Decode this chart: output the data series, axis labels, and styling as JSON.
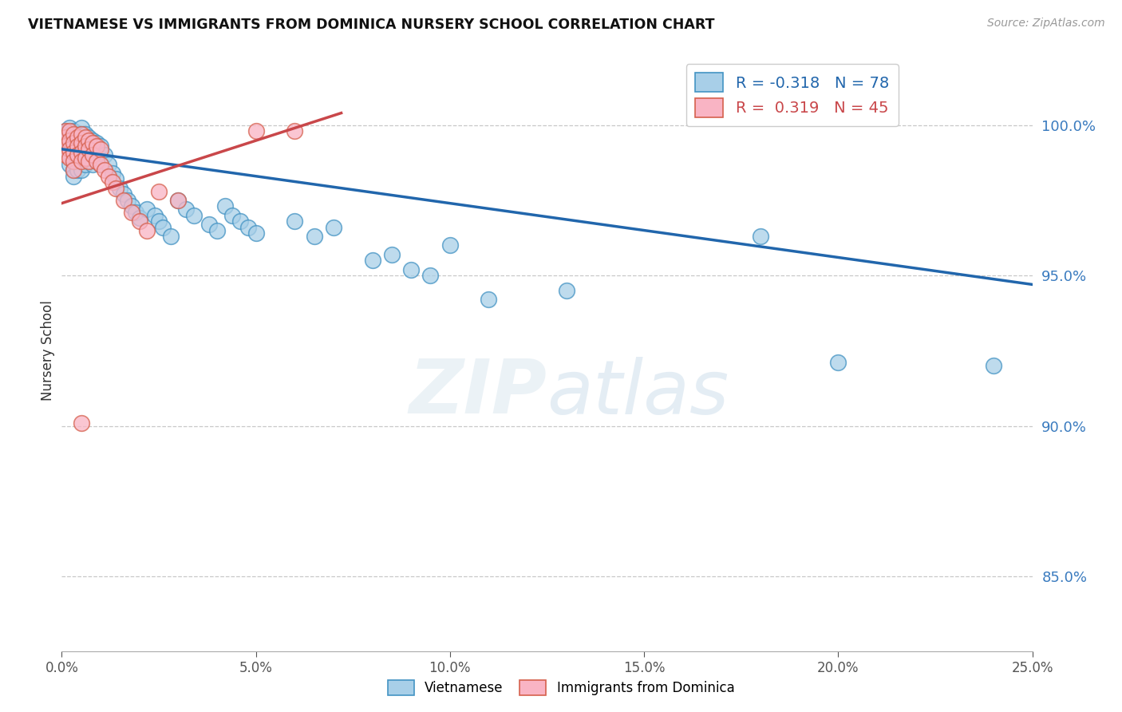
{
  "title": "VIETNAMESE VS IMMIGRANTS FROM DOMINICA NURSERY SCHOOL CORRELATION CHART",
  "source": "Source: ZipAtlas.com",
  "ylabel": "Nursery School",
  "ytick_labels": [
    "100.0%",
    "95.0%",
    "90.0%",
    "85.0%"
  ],
  "ytick_values": [
    1.0,
    0.95,
    0.9,
    0.85
  ],
  "xmin": 0.0,
  "xmax": 0.25,
  "ymin": 0.825,
  "ymax": 1.025,
  "legend_blue_r": "-0.318",
  "legend_blue_n": "78",
  "legend_pink_r": "0.319",
  "legend_pink_n": "45",
  "blue_color": "#a8cfe8",
  "blue_edge": "#4393c3",
  "pink_color": "#f9b4c4",
  "pink_edge": "#d6604d",
  "trendline_blue": "#2166ac",
  "trendline_pink": "#c9474a",
  "legend_label_blue": "Vietnamese",
  "legend_label_pink": "Immigrants from Dominica",
  "blue_scatter_x": [
    0.001,
    0.001,
    0.001,
    0.002,
    0.002,
    0.002,
    0.002,
    0.002,
    0.003,
    0.003,
    0.003,
    0.003,
    0.003,
    0.003,
    0.003,
    0.004,
    0.004,
    0.004,
    0.004,
    0.004,
    0.005,
    0.005,
    0.005,
    0.005,
    0.005,
    0.005,
    0.006,
    0.006,
    0.006,
    0.006,
    0.007,
    0.007,
    0.007,
    0.008,
    0.008,
    0.008,
    0.009,
    0.009,
    0.01,
    0.01,
    0.011,
    0.012,
    0.013,
    0.014,
    0.015,
    0.016,
    0.017,
    0.018,
    0.019,
    0.02,
    0.022,
    0.024,
    0.025,
    0.026,
    0.028,
    0.03,
    0.032,
    0.034,
    0.038,
    0.04,
    0.042,
    0.044,
    0.046,
    0.048,
    0.05,
    0.06,
    0.065,
    0.07,
    0.08,
    0.085,
    0.09,
    0.095,
    0.1,
    0.11,
    0.13,
    0.18,
    0.2,
    0.24
  ],
  "blue_scatter_y": [
    0.998,
    0.995,
    0.993,
    0.999,
    0.997,
    0.994,
    0.99,
    0.987,
    0.998,
    0.996,
    0.993,
    0.99,
    0.988,
    0.985,
    0.983,
    0.997,
    0.994,
    0.991,
    0.988,
    0.985,
    0.999,
    0.997,
    0.994,
    0.991,
    0.988,
    0.985,
    0.997,
    0.994,
    0.991,
    0.987,
    0.996,
    0.992,
    0.988,
    0.995,
    0.991,
    0.987,
    0.994,
    0.988,
    0.993,
    0.987,
    0.99,
    0.987,
    0.984,
    0.982,
    0.979,
    0.977,
    0.975,
    0.973,
    0.971,
    0.969,
    0.972,
    0.97,
    0.968,
    0.966,
    0.963,
    0.975,
    0.972,
    0.97,
    0.967,
    0.965,
    0.973,
    0.97,
    0.968,
    0.966,
    0.964,
    0.968,
    0.963,
    0.966,
    0.955,
    0.957,
    0.952,
    0.95,
    0.96,
    0.942,
    0.945,
    0.963,
    0.921,
    0.92
  ],
  "pink_scatter_x": [
    0.001,
    0.001,
    0.001,
    0.001,
    0.002,
    0.002,
    0.002,
    0.002,
    0.003,
    0.003,
    0.003,
    0.003,
    0.003,
    0.004,
    0.004,
    0.004,
    0.005,
    0.005,
    0.005,
    0.005,
    0.006,
    0.006,
    0.006,
    0.007,
    0.007,
    0.007,
    0.008,
    0.008,
    0.009,
    0.009,
    0.01,
    0.01,
    0.011,
    0.012,
    0.013,
    0.014,
    0.016,
    0.018,
    0.02,
    0.022,
    0.025,
    0.03,
    0.05,
    0.06,
    0.005
  ],
  "pink_scatter_y": [
    0.998,
    0.996,
    0.993,
    0.99,
    0.998,
    0.995,
    0.992,
    0.989,
    0.997,
    0.994,
    0.991,
    0.988,
    0.985,
    0.996,
    0.993,
    0.99,
    0.997,
    0.994,
    0.991,
    0.988,
    0.996,
    0.993,
    0.989,
    0.995,
    0.992,
    0.988,
    0.994,
    0.99,
    0.993,
    0.988,
    0.992,
    0.987,
    0.985,
    0.983,
    0.981,
    0.979,
    0.975,
    0.971,
    0.968,
    0.965,
    0.978,
    0.975,
    0.998,
    0.998,
    0.901
  ],
  "blue_trend_x": [
    0.0,
    0.25
  ],
  "blue_trend_y": [
    0.992,
    0.947
  ],
  "pink_trend_x": [
    0.0,
    0.072
  ],
  "pink_trend_y": [
    0.974,
    1.004
  ],
  "xtick_values": [
    0.0,
    0.05,
    0.1,
    0.15,
    0.2,
    0.25
  ],
  "xtick_labels": [
    "0.0%",
    "5.0%",
    "10.0%",
    "15.0%",
    "20.0%",
    "25.0%"
  ]
}
